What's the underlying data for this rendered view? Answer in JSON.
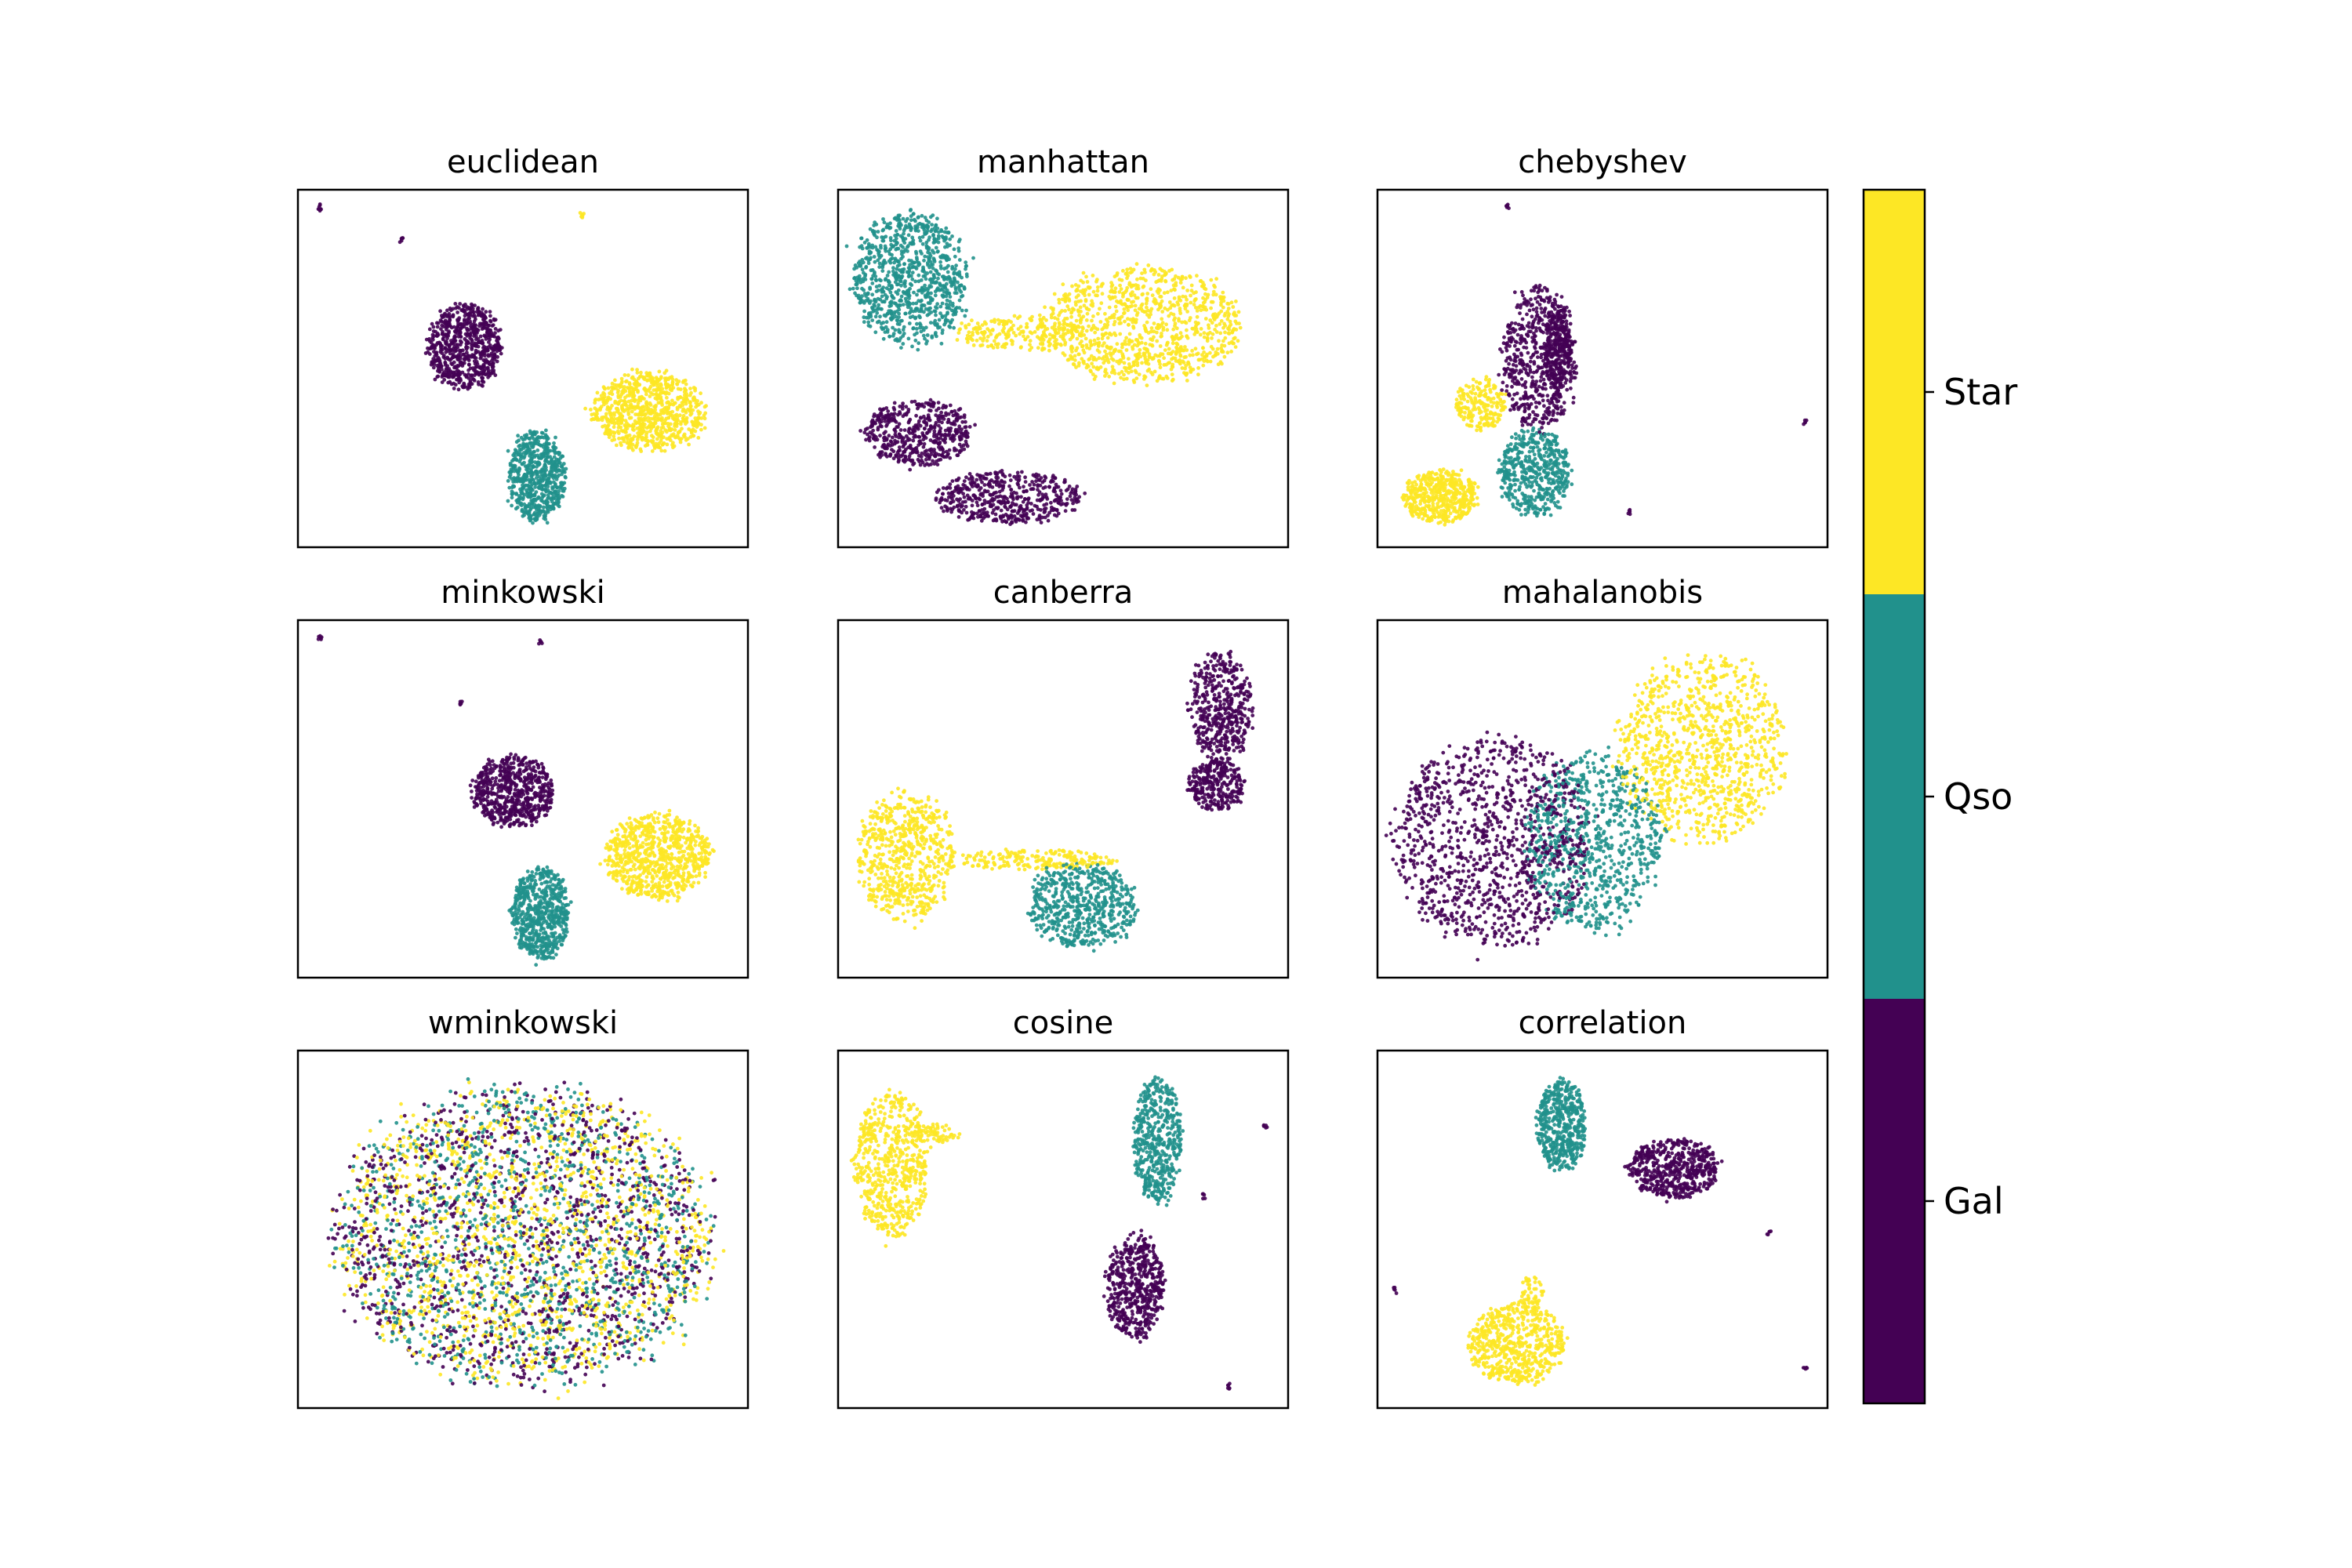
{
  "chart_data": {
    "type": "scatter",
    "description_of_axes": "UMAP-style 2D embeddings, no ticks or axis labels shown",
    "palette": {
      "Gal": "#440154",
      "Qso": "#21918c",
      "Star": "#fde725"
    },
    "colorbar": {
      "labels": [
        "Star",
        "Qso",
        "Gal"
      ],
      "colors": [
        "#fde725",
        "#21918c",
        "#440154"
      ]
    },
    "panels": [
      {
        "title": "euclidean",
        "clusters": [
          {
            "label": "Gal",
            "cx": 0.37,
            "cy": 0.44,
            "rx": 0.09,
            "ry": 0.13,
            "n": 700
          },
          {
            "label": "Qso",
            "cx": 0.53,
            "cy": 0.8,
            "rx": 0.07,
            "ry": 0.14,
            "n": 650
          },
          {
            "label": "Star",
            "cx": 0.78,
            "cy": 0.62,
            "rx": 0.14,
            "ry": 0.12,
            "n": 800
          },
          {
            "label": "Gal",
            "cx": 0.05,
            "cy": 0.05,
            "rx": 0.006,
            "ry": 0.01,
            "n": 8
          },
          {
            "label": "Star",
            "cx": 0.63,
            "cy": 0.07,
            "rx": 0.006,
            "ry": 0.01,
            "n": 8
          },
          {
            "label": "Gal",
            "cx": 0.23,
            "cy": 0.14,
            "rx": 0.006,
            "ry": 0.01,
            "n": 6
          }
        ]
      },
      {
        "title": "manhattan",
        "clusters": [
          {
            "label": "Qso",
            "cx": 0.16,
            "cy": 0.25,
            "rx": 0.14,
            "ry": 0.2,
            "n": 900
          },
          {
            "label": "Star",
            "cx": 0.68,
            "cy": 0.38,
            "rx": 0.24,
            "ry": 0.18,
            "n": 1000
          },
          {
            "label": "Gal",
            "cx": 0.18,
            "cy": 0.68,
            "rx": 0.13,
            "ry": 0.1,
            "n": 500
          },
          {
            "label": "Gal",
            "cx": 0.38,
            "cy": 0.86,
            "rx": 0.18,
            "ry": 0.08,
            "n": 500
          },
          {
            "label": "Star",
            "cx": 0.4,
            "cy": 0.4,
            "rx": 0.16,
            "ry": 0.05,
            "n": 200
          }
        ]
      },
      {
        "title": "chebyshev",
        "clusters": [
          {
            "label": "Gal",
            "cx": 0.36,
            "cy": 0.47,
            "rx": 0.09,
            "ry": 0.22,
            "n": 600
          },
          {
            "label": "Gal",
            "cx": 0.4,
            "cy": 0.45,
            "rx": 0.03,
            "ry": 0.14,
            "n": 250
          },
          {
            "label": "Star",
            "cx": 0.14,
            "cy": 0.86,
            "rx": 0.09,
            "ry": 0.08,
            "n": 500
          },
          {
            "label": "Qso",
            "cx": 0.35,
            "cy": 0.79,
            "rx": 0.09,
            "ry": 0.13,
            "n": 500
          },
          {
            "label": "Star",
            "cx": 0.23,
            "cy": 0.6,
            "rx": 0.06,
            "ry": 0.08,
            "n": 200
          },
          {
            "label": "Gal",
            "cx": 0.29,
            "cy": 0.05,
            "rx": 0.005,
            "ry": 0.01,
            "n": 6
          },
          {
            "label": "Gal",
            "cx": 0.95,
            "cy": 0.65,
            "rx": 0.005,
            "ry": 0.01,
            "n": 5
          },
          {
            "label": "Gal",
            "cx": 0.56,
            "cy": 0.9,
            "rx": 0.005,
            "ry": 0.01,
            "n": 5
          }
        ]
      },
      {
        "title": "minkowski",
        "clusters": [
          {
            "label": "Gal",
            "cx": 0.48,
            "cy": 0.48,
            "rx": 0.1,
            "ry": 0.11,
            "n": 650
          },
          {
            "label": "Qso",
            "cx": 0.54,
            "cy": 0.82,
            "rx": 0.07,
            "ry": 0.14,
            "n": 650
          },
          {
            "label": "Star",
            "cx": 0.8,
            "cy": 0.66,
            "rx": 0.13,
            "ry": 0.13,
            "n": 800
          },
          {
            "label": "Gal",
            "cx": 0.05,
            "cy": 0.05,
            "rx": 0.006,
            "ry": 0.01,
            "n": 6
          },
          {
            "label": "Gal",
            "cx": 0.54,
            "cy": 0.06,
            "rx": 0.006,
            "ry": 0.01,
            "n": 6
          },
          {
            "label": "Gal",
            "cx": 0.36,
            "cy": 0.23,
            "rx": 0.006,
            "ry": 0.01,
            "n": 6
          }
        ]
      },
      {
        "title": "canberra",
        "clusters": [
          {
            "label": "Gal",
            "cx": 0.85,
            "cy": 0.24,
            "rx": 0.08,
            "ry": 0.16,
            "n": 450
          },
          {
            "label": "Gal",
            "cx": 0.84,
            "cy": 0.46,
            "rx": 0.07,
            "ry": 0.08,
            "n": 300
          },
          {
            "label": "Star",
            "cx": 0.15,
            "cy": 0.66,
            "rx": 0.12,
            "ry": 0.2,
            "n": 650
          },
          {
            "label": "Star",
            "cx": 0.43,
            "cy": 0.67,
            "rx": 0.22,
            "ry": 0.03,
            "n": 200
          },
          {
            "label": "Qso",
            "cx": 0.54,
            "cy": 0.8,
            "rx": 0.13,
            "ry": 0.13,
            "n": 600
          }
        ]
      },
      {
        "title": "mahalanobis",
        "clusters": [
          {
            "label": "Gal",
            "cx": 0.26,
            "cy": 0.62,
            "rx": 0.24,
            "ry": 0.32,
            "n": 1100
          },
          {
            "label": "Qso",
            "cx": 0.48,
            "cy": 0.62,
            "rx": 0.17,
            "ry": 0.27,
            "n": 800
          },
          {
            "label": "Star",
            "cx": 0.72,
            "cy": 0.36,
            "rx": 0.2,
            "ry": 0.29,
            "n": 1000
          }
        ]
      },
      {
        "title": "wminkowski",
        "clusters": [
          {
            "label": "Gal",
            "cx": 0.5,
            "cy": 0.52,
            "rx": 0.46,
            "ry": 0.45,
            "n": 1200
          },
          {
            "label": "Qso",
            "cx": 0.5,
            "cy": 0.52,
            "rx": 0.46,
            "ry": 0.45,
            "n": 1100
          },
          {
            "label": "Star",
            "cx": 0.5,
            "cy": 0.52,
            "rx": 0.46,
            "ry": 0.45,
            "n": 1400
          }
        ]
      },
      {
        "title": "cosine",
        "clusters": [
          {
            "label": "Star",
            "cx": 0.12,
            "cy": 0.32,
            "rx": 0.09,
            "ry": 0.22,
            "n": 600
          },
          {
            "label": "Star",
            "cx": 0.22,
            "cy": 0.23,
            "rx": 0.06,
            "ry": 0.03,
            "n": 60
          },
          {
            "label": "Qso",
            "cx": 0.71,
            "cy": 0.25,
            "rx": 0.06,
            "ry": 0.19,
            "n": 500
          },
          {
            "label": "Gal",
            "cx": 0.66,
            "cy": 0.66,
            "rx": 0.07,
            "ry": 0.16,
            "n": 550
          },
          {
            "label": "Gal",
            "cx": 0.95,
            "cy": 0.21,
            "rx": 0.006,
            "ry": 0.01,
            "n": 6
          },
          {
            "label": "Gal",
            "cx": 0.81,
            "cy": 0.41,
            "rx": 0.006,
            "ry": 0.01,
            "n": 5
          },
          {
            "label": "Gal",
            "cx": 0.87,
            "cy": 0.94,
            "rx": 0.006,
            "ry": 0.01,
            "n": 6
          }
        ]
      },
      {
        "title": "correlation",
        "clusters": [
          {
            "label": "Qso",
            "cx": 0.41,
            "cy": 0.21,
            "rx": 0.06,
            "ry": 0.14,
            "n": 500
          },
          {
            "label": "Gal",
            "cx": 0.66,
            "cy": 0.33,
            "rx": 0.11,
            "ry": 0.09,
            "n": 550
          },
          {
            "label": "Star",
            "cx": 0.31,
            "cy": 0.82,
            "rx": 0.12,
            "ry": 0.12,
            "n": 600
          },
          {
            "label": "Star",
            "cx": 0.34,
            "cy": 0.68,
            "rx": 0.03,
            "ry": 0.06,
            "n": 60
          },
          {
            "label": "Gal",
            "cx": 0.04,
            "cy": 0.67,
            "rx": 0.006,
            "ry": 0.01,
            "n": 5
          },
          {
            "label": "Gal",
            "cx": 0.87,
            "cy": 0.51,
            "rx": 0.006,
            "ry": 0.01,
            "n": 5
          },
          {
            "label": "Gal",
            "cx": 0.95,
            "cy": 0.89,
            "rx": 0.006,
            "ry": 0.01,
            "n": 5
          }
        ]
      }
    ]
  }
}
